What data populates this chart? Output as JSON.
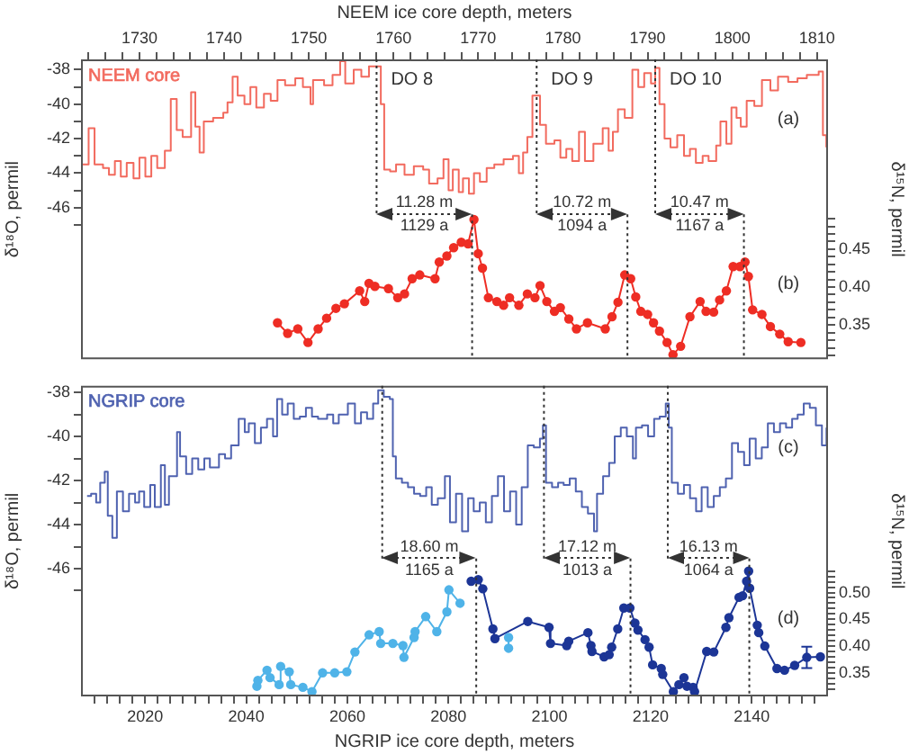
{
  "chart_data": [
    {
      "type": "step",
      "xlabel": "NEEM ice core depth, meters",
      "xlim": [
        1723.1,
        1811.3
      ],
      "xticks": [
        {
          "value": 1724,
          "label": null
        },
        {
          "value": 1726,
          "label": null
        },
        {
          "value": 1728,
          "label": null
        },
        1730,
        {
          "value": 1732,
          "label": null
        },
        {
          "value": 1734,
          "label": null
        },
        {
          "value": 1736,
          "label": null
        },
        {
          "value": 1738,
          "label": null
        },
        1740,
        {
          "value": 1742,
          "label": null
        },
        {
          "value": 1744,
          "label": null
        },
        {
          "value": 1746,
          "label": null
        },
        {
          "value": 1748,
          "label": null
        },
        1750,
        {
          "value": 1752,
          "label": null
        },
        {
          "value": 1754,
          "label": null
        },
        {
          "value": 1756,
          "label": null
        },
        {
          "value": 1758,
          "label": null
        },
        1760,
        {
          "value": 1762,
          "label": null
        },
        {
          "value": 1764,
          "label": null
        },
        {
          "value": 1766,
          "label": null
        },
        {
          "value": 1768,
          "label": null
        },
        1770,
        {
          "value": 1772,
          "label": null
        },
        {
          "value": 1774,
          "label": null
        },
        {
          "value": 1776,
          "label": null
        },
        {
          "value": 1778,
          "label": null
        },
        1780,
        {
          "value": 1782,
          "label": null
        },
        {
          "value": 1784,
          "label": null
        },
        {
          "value": 1786,
          "label": null
        },
        {
          "value": 1788,
          "label": null
        },
        1790,
        {
          "value": 1792,
          "label": null
        },
        {
          "value": 1794,
          "label": null
        },
        {
          "value": 1796,
          "label": null
        },
        {
          "value": 1798,
          "label": null
        },
        1800,
        {
          "value": 1802,
          "label": null
        },
        {
          "value": 1804,
          "label": null
        },
        {
          "value": 1806,
          "label": null
        },
        {
          "value": 1808,
          "label": null
        },
        1810
      ],
      "ylabel": "δ¹⁸O, permil",
      "ylim": [
        -54.8,
        -37.4
      ],
      "yticks": [
        -38,
        {
          "value": -39,
          "label": null
        },
        -40,
        {
          "value": -41,
          "label": null
        },
        -42,
        {
          "value": -43,
          "label": null
        },
        -44,
        {
          "value": -45,
          "label": null
        },
        -46,
        {
          "value": -47,
          "label": null
        }
      ],
      "y2label": "δ¹⁵N, permil",
      "y2lim": [
        0.305,
        0.7
      ],
      "y2ticks": [
        {
          "value": 0.31,
          "label": null
        },
        {
          "value": 0.32,
          "label": null
        },
        {
          "value": 0.33,
          "label": null
        },
        {
          "value": 0.34,
          "label": null
        },
        {
          "value": 0.35,
          "label": "0.35"
        },
        {
          "value": 0.36,
          "label": null
        },
        {
          "value": 0.37,
          "label": null
        },
        {
          "value": 0.38,
          "label": null
        },
        {
          "value": 0.39,
          "label": null
        },
        {
          "value": 0.4,
          "label": "0.40"
        },
        {
          "value": 0.41,
          "label": null
        },
        {
          "value": 0.42,
          "label": null
        },
        {
          "value": 0.43,
          "label": null
        },
        {
          "value": 0.44,
          "label": null
        },
        {
          "value": 0.45,
          "label": "0.45"
        },
        {
          "value": 0.46,
          "label": null
        },
        {
          "value": 0.47,
          "label": null
        },
        {
          "value": 0.48,
          "label": null
        },
        {
          "value": 0.49,
          "label": null
        }
      ],
      "legend": "top left",
      "grid": false,
      "marker": "circle",
      "series": [
        {
          "name": "NEEM core",
          "marker": "none",
          "color": "#f26a5e",
          "x": [
            1723.1,
            1724.0,
            1724.7,
            1725.7,
            1726.4,
            1727.1,
            1727.8,
            1728.5,
            1729.3,
            1730.0,
            1730.7,
            1731.4,
            1732.1,
            1733.0,
            1733.7,
            1734.4,
            1735.1,
            1736.1,
            1736.6,
            1737.1,
            1737.6,
            1738.7,
            1739.9,
            1740.4,
            1741.0,
            1741.6,
            1742.4,
            1743.1,
            1743.8,
            1744.7,
            1745.5,
            1746.3,
            1747.2,
            1748.4,
            1749.3,
            1750.2,
            1750.5,
            1751.8,
            1752.8,
            1753.7,
            1754.3,
            1755.3,
            1756.2,
            1757.1,
            1758.5,
            1758.9,
            1759.6,
            1760.3,
            1761.3,
            1762.4,
            1763.5,
            1764.2,
            1765.2,
            1765.9,
            1766.5,
            1767.0,
            1767.7,
            1768.2,
            1768.9,
            1769.5,
            1770.2,
            1771.0,
            1771.9,
            1773.0,
            1774.1,
            1774.8,
            1775.3,
            1775.8,
            1776.4,
            1777.3,
            1778.0,
            1779.0,
            1779.7,
            1780.4,
            1781.1,
            1781.9,
            1782.6,
            1783.6,
            1784.7,
            1785.4,
            1785.9,
            1786.5,
            1787.3,
            1788.2,
            1788.9,
            1789.6,
            1790.4,
            1790.9,
            1791.4,
            1792.0,
            1792.7,
            1793.5,
            1794.3,
            1795.0,
            1795.7,
            1796.5,
            1797.2,
            1798.1,
            1798.6,
            1799.3,
            1799.9,
            1800.5,
            1801.0,
            1801.7,
            1802.6,
            1803.5,
            1804.5,
            1805.4,
            1806.6,
            1807.7,
            1808.8,
            1810.2,
            1810.7,
            1811.1
          ],
          "values": [
            -43.5,
            -41.4,
            -43.5,
            -43.7,
            -44.1,
            -43.3,
            -44.2,
            -43.4,
            -44.3,
            -43.1,
            -44.2,
            -43.0,
            -43.7,
            -42.7,
            -39.7,
            -41.5,
            -41.9,
            -39.3,
            -41.3,
            -42.8,
            -41.0,
            -40.8,
            -40.5,
            -39.9,
            -38.4,
            -39.5,
            -40.0,
            -39.0,
            -40.2,
            -39.4,
            -39.8,
            -38.6,
            -38.9,
            -38.5,
            -39.0,
            -40.0,
            -38.6,
            -38.9,
            -38.3,
            -37.5,
            -38.8,
            -38.0,
            -38.4,
            -37.8,
            -40.0,
            -43.8,
            -43.9,
            -43.5,
            -44.1,
            -43.6,
            -43.8,
            -44.6,
            -44.3,
            -43.2,
            -45.0,
            -43.8,
            -45.1,
            -44.3,
            -45.2,
            -44.0,
            -44.5,
            -43.7,
            -43.5,
            -43.2,
            -43.0,
            -44.0,
            -42.8,
            -41.9,
            -39.5,
            -41.2,
            -42.3,
            -42.1,
            -43.1,
            -42.6,
            -43.3,
            -41.6,
            -43.3,
            -42.3,
            -41.4,
            -42.7,
            -41.6,
            -40.3,
            -40.8,
            -38.0,
            -39.0,
            -38.2,
            -38.8,
            -37.9,
            -40.0,
            -42.0,
            -42.5,
            -41.8,
            -43.0,
            -42.6,
            -43.4,
            -43.0,
            -43.3,
            -42.4,
            -41.0,
            -42.3,
            -40.2,
            -40.8,
            -41.3,
            -39.8,
            -40.1,
            -38.6,
            -39.2,
            -38.4,
            -38.7,
            -38.5,
            -38.3,
            -38.1,
            -41.8,
            -42.5
          ]
        },
        {
          "type": "line",
          "axis": "y2",
          "color": "#ee2d24",
          "x": [
            1746.3,
            1747.5,
            1748.7,
            1749.9,
            1751.1,
            1752.1,
            1753.2,
            1754.2,
            1756.0,
            1756.6,
            1757.1,
            1757.8,
            1759.4,
            1760.5,
            1761.3,
            1762.2,
            1763.1,
            1764.9,
            1765.4,
            1766.3,
            1767.1,
            1768.0,
            1768.8,
            1769.5,
            1770.0,
            1770.5,
            1771.2,
            1772.2,
            1773.0,
            1773.7,
            1774.8,
            1775.8,
            1776.7,
            1777.3,
            1778.1,
            1779.0,
            1779.7,
            1780.7,
            1781.6,
            1782.9,
            1785.0,
            1785.8,
            1786.5,
            1787.3,
            1788.0,
            1788.6,
            1789.2,
            1790.0,
            1790.7,
            1791.4,
            1792.3,
            1793.0,
            1793.9,
            1795.0,
            1796.2,
            1796.9,
            1797.8,
            1798.5,
            1799.3,
            1800.1,
            1800.9,
            1801.5,
            1801.9,
            1802.4,
            1803.5,
            1804.5,
            1805.6,
            1806.6,
            1808.1
          ],
          "values": [
            0.353,
            0.339,
            0.345,
            0.327,
            0.345,
            0.359,
            0.372,
            0.378,
            0.395,
            0.381,
            0.405,
            0.401,
            0.398,
            0.386,
            0.391,
            0.411,
            0.416,
            0.411,
            0.433,
            0.441,
            0.452,
            0.459,
            0.457,
            0.489,
            0.444,
            0.425,
            0.386,
            0.381,
            0.376,
            0.386,
            0.376,
            0.391,
            0.386,
            0.402,
            0.381,
            0.368,
            0.373,
            0.358,
            0.345,
            0.353,
            0.345,
            0.361,
            0.38,
            0.416,
            0.411,
            0.387,
            0.368,
            0.364,
            0.353,
            0.342,
            0.327,
            0.311,
            0.322,
            0.361,
            0.381,
            0.368,
            0.367,
            0.383,
            0.395,
            0.427,
            0.427,
            0.433,
            0.414,
            0.37,
            0.364,
            0.348,
            0.338,
            0.328,
            0.327
          ]
        }
      ],
      "ref_lines": [
        {
          "axis": "x",
          "value": 1758.0,
          "label": "DO 8",
          "line_style": "dotted"
        },
        {
          "axis": "x",
          "value": 1769.28,
          "line_style": "dotted"
        },
        {
          "axis": "x",
          "value": 1776.9,
          "label": "DO 9",
          "line_style": "dotted"
        },
        {
          "axis": "x",
          "value": 1787.62,
          "line_style": "dotted"
        },
        {
          "axis": "x",
          "value": 1790.9,
          "label": "DO 10",
          "line_style": "dotted"
        },
        {
          "axis": "x",
          "value": 1801.37,
          "line_style": "dotted"
        }
      ],
      "annotations": [
        "11.28 m",
        "1129 a",
        "10.72 m",
        "1094 a",
        "10.47 m",
        "1167 a",
        "(a)",
        "(b)"
      ]
    },
    {
      "type": "step",
      "xlabel": "NGRIP ice core depth, meters",
      "xlim": [
        2007.3,
        2155.1
      ],
      "xticks": [
        {
          "value": 2010,
          "label": null
        },
        {
          "value": 2012.5,
          "label": null
        },
        {
          "value": 2015,
          "label": null
        },
        {
          "value": 2017.5,
          "label": null
        },
        2020,
        {
          "value": 2022.5,
          "label": null
        },
        {
          "value": 2025,
          "label": null
        },
        {
          "value": 2027.5,
          "label": null
        },
        {
          "value": 2030,
          "label": null
        },
        {
          "value": 2032.5,
          "label": null
        },
        {
          "value": 2035,
          "label": null
        },
        {
          "value": 2037.5,
          "label": null
        },
        2040,
        {
          "value": 2042.5,
          "label": null
        },
        {
          "value": 2045,
          "label": null
        },
        {
          "value": 2047.5,
          "label": null
        },
        {
          "value": 2050,
          "label": null
        },
        {
          "value": 2052.5,
          "label": null
        },
        {
          "value": 2055,
          "label": null
        },
        {
          "value": 2057.5,
          "label": null
        },
        2060,
        {
          "value": 2062.5,
          "label": null
        },
        {
          "value": 2065,
          "label": null
        },
        {
          "value": 2067.5,
          "label": null
        },
        {
          "value": 2070,
          "label": null
        },
        {
          "value": 2072.5,
          "label": null
        },
        {
          "value": 2075,
          "label": null
        },
        {
          "value": 2077.5,
          "label": null
        },
        2080,
        {
          "value": 2082.5,
          "label": null
        },
        {
          "value": 2085,
          "label": null
        },
        {
          "value": 2087.5,
          "label": null
        },
        {
          "value": 2090,
          "label": null
        },
        {
          "value": 2092.5,
          "label": null
        },
        {
          "value": 2095,
          "label": null
        },
        {
          "value": 2097.5,
          "label": null
        },
        2100,
        {
          "value": 2102.5,
          "label": null
        },
        {
          "value": 2105,
          "label": null
        },
        {
          "value": 2107.5,
          "label": null
        },
        {
          "value": 2110,
          "label": null
        },
        {
          "value": 2112.5,
          "label": null
        },
        {
          "value": 2115,
          "label": null
        },
        {
          "value": 2117.5,
          "label": null
        },
        2120,
        {
          "value": 2122.5,
          "label": null
        },
        {
          "value": 2125,
          "label": null
        },
        {
          "value": 2127.5,
          "label": null
        },
        {
          "value": 2130,
          "label": null
        },
        {
          "value": 2132.5,
          "label": null
        },
        {
          "value": 2135,
          "label": null
        },
        {
          "value": 2137.5,
          "label": null
        },
        2140,
        {
          "value": 2142.5,
          "label": null
        },
        {
          "value": 2145,
          "label": null
        },
        {
          "value": 2147.5,
          "label": null
        },
        {
          "value": 2150,
          "label": null
        },
        {
          "value": 2152.5,
          "label": null
        }
      ],
      "ylabel": "δ¹⁸O, permil",
      "ylim": [
        -51.8,
        -37.7
      ],
      "yticks": [
        -38,
        {
          "value": -39,
          "label": null
        },
        -40,
        {
          "value": -41,
          "label": null
        },
        -42,
        {
          "value": -43,
          "label": null
        },
        -44,
        {
          "value": -45,
          "label": null
        },
        -46,
        {
          "value": -47,
          "label": null
        }
      ],
      "y2label": "δ¹⁵N, permil",
      "y2lim": [
        0.306,
        0.886
      ],
      "y2ticks": [
        {
          "value": 0.32,
          "label": null
        },
        {
          "value": 0.33,
          "label": null
        },
        {
          "value": 0.34,
          "label": null
        },
        {
          "value": 0.35,
          "label": "0.35"
        },
        {
          "value": 0.36,
          "label": null
        },
        {
          "value": 0.37,
          "label": null
        },
        {
          "value": 0.38,
          "label": null
        },
        {
          "value": 0.39,
          "label": null
        },
        {
          "value": 0.4,
          "label": "0.40"
        },
        {
          "value": 0.41,
          "label": null
        },
        {
          "value": 0.42,
          "label": null
        },
        {
          "value": 0.43,
          "label": null
        },
        {
          "value": 0.44,
          "label": null
        },
        {
          "value": 0.45,
          "label": "0.45"
        },
        {
          "value": 0.46,
          "label": null
        },
        {
          "value": 0.47,
          "label": null
        },
        {
          "value": 0.48,
          "label": null
        },
        {
          "value": 0.49,
          "label": null
        },
        {
          "value": 0.5,
          "label": "0.50"
        },
        {
          "value": 0.51,
          "label": null
        },
        {
          "value": 0.52,
          "label": null
        },
        {
          "value": 0.53,
          "label": null
        },
        {
          "value": 0.54,
          "label": null
        }
      ],
      "legend": "top left",
      "grid": false,
      "marker": "circle",
      "series": [
        {
          "name": "NGRIP core",
          "marker": "none",
          "color": "#4f62b0",
          "x": [
            2008.5,
            2009.3,
            2010.3,
            2011.1,
            2012.0,
            2012.6,
            2013.5,
            2014.4,
            2015.6,
            2016.8,
            2018.0,
            2018.8,
            2019.8,
            2021.0,
            2021.9,
            2023.1,
            2023.9,
            2024.7,
            2026.3,
            2026.9,
            2028.1,
            2029.3,
            2030.5,
            2031.7,
            2032.8,
            2034.6,
            2035.8,
            2037.0,
            2038.5,
            2039.7,
            2040.5,
            2041.7,
            2042.9,
            2044.1,
            2045.3,
            2046.1,
            2047.1,
            2048.2,
            2049.4,
            2050.6,
            2051.8,
            2053.0,
            2054.2,
            2056.0,
            2057.2,
            2058.3,
            2060.1,
            2061.5,
            2062.7,
            2063.9,
            2065.1,
            2066.1,
            2067.2,
            2068.4,
            2069.0,
            2069.6,
            2070.8,
            2072.0,
            2073.2,
            2074.4,
            2075.6,
            2076.7,
            2077.9,
            2079.3,
            2080.3,
            2081.5,
            2082.7,
            2083.9,
            2085.0,
            2086.2,
            2087.4,
            2088.6,
            2089.8,
            2091.0,
            2092.2,
            2093.4,
            2094.5,
            2095.7,
            2096.9,
            2098.1,
            2098.7,
            2099.3,
            2100.5,
            2101.7,
            2102.8,
            2104.0,
            2105.2,
            2106.4,
            2107.6,
            2108.8,
            2109.4,
            2110.6,
            2111.8,
            2112.9,
            2114.1,
            2115.3,
            2116.5,
            2117.1,
            2118.3,
            2119.5,
            2120.7,
            2121.8,
            2123.0,
            2123.6,
            2124.2,
            2125.4,
            2126.6,
            2127.8,
            2129.0,
            2130.1,
            2131.3,
            2132.5,
            2133.7,
            2134.9,
            2136.1,
            2137.3,
            2138.5,
            2139.6,
            2140.8,
            2142.0,
            2143.2,
            2144.4,
            2145.6,
            2146.8,
            2148.0,
            2149.1,
            2150.3,
            2151.5,
            2152.7,
            2153.9,
            2154.8
          ],
          "values": [
            -42.7,
            -42.6,
            -43.0,
            -42.1,
            -41.6,
            -43.6,
            -44.6,
            -42.5,
            -43.4,
            -42.6,
            -43.0,
            -42.5,
            -43.2,
            -42.2,
            -43.2,
            -41.3,
            -43.1,
            -41.8,
            -39.8,
            -40.9,
            -41.7,
            -41.0,
            -41.5,
            -41.0,
            -41.4,
            -40.8,
            -41.0,
            -40.4,
            -39.2,
            -39.8,
            -39.4,
            -40.3,
            -39.6,
            -39.2,
            -40.0,
            -38.3,
            -39.0,
            -38.5,
            -39.2,
            -39.1,
            -38.7,
            -39.1,
            -39.2,
            -39.0,
            -39.4,
            -39.0,
            -38.5,
            -39.4,
            -38.9,
            -39.2,
            -38.5,
            -37.9,
            -38.2,
            -38.3,
            -40.9,
            -41.9,
            -42.1,
            -42.3,
            -42.6,
            -42.7,
            -42.3,
            -43.1,
            -42.8,
            -41.8,
            -43.9,
            -42.6,
            -44.3,
            -42.8,
            -43.4,
            -43.0,
            -43.9,
            -42.7,
            -41.8,
            -43.4,
            -42.5,
            -44.0,
            -42.3,
            -40.4,
            -40.5,
            -40.1,
            -39.5,
            -42.1,
            -42.3,
            -42.1,
            -42.2,
            -41.9,
            -42.5,
            -43.2,
            -43.5,
            -44.3,
            -42.6,
            -41.8,
            -41.2,
            -40.0,
            -39.6,
            -40.0,
            -41.0,
            -39.6,
            -39.5,
            -40.0,
            -39.2,
            -39.1,
            -38.5,
            -39.6,
            -42.1,
            -42.6,
            -42.2,
            -42.8,
            -43.4,
            -42.3,
            -43.2,
            -42.7,
            -42.3,
            -41.9,
            -40.3,
            -40.7,
            -41.3,
            -40.1,
            -41.0,
            -40.5,
            -39.4,
            -39.8,
            -39.4,
            -39.6,
            -39.2,
            -39.0,
            -38.5,
            -38.7,
            -39.5,
            -40.4,
            -39.6
          ]
        },
        {
          "type": "line",
          "axis": "y2",
          "color": "#4fb3e8",
          "x": [
            2042.1,
            2042.3,
            2044.1,
            2044.7,
            2046.5,
            2046.8,
            2048.5,
            2048.8,
            2051.2,
            2053.0,
            2055.1,
            2057.5,
            2059.9,
            2061.5,
            2064.3,
            2066.3,
            2066.6,
            2069.0,
            2071.0,
            2071.2,
            2073.2,
            2073.4,
            2075.5,
            2077.7,
            2079.7,
            2080.1,
            2082.3,
            2087.0,
            2091.9,
            2091.9
          ],
          "values": [
            0.325,
            0.336,
            0.355,
            0.341,
            0.328,
            0.362,
            0.352,
            0.328,
            0.323,
            0.315,
            0.35,
            0.35,
            0.352,
            0.389,
            0.421,
            0.427,
            0.405,
            0.405,
            0.401,
            0.379,
            0.416,
            0.427,
            0.455,
            0.427,
            0.464,
            0.505,
            0.48,
            null,
            0.416,
            0.396
          ]
        },
        {
          "type": "line",
          "axis": "y2",
          "color": "#1c3596",
          "x": [
            2084.5,
            2085.9,
            2086.8,
            2088.8,
            2089.2,
            2095.7,
            2099.9,
            2100.2,
            2103.4,
            2103.8,
            2107.6,
            2108.2,
            2108.4,
            2110.8,
            2111.8,
            2112.3,
            2113.5,
            2114.7,
            2115.9,
            2116.9,
            2117.5,
            2118.9,
            2119.7,
            2120.4,
            2122.1,
            2122.4,
            2124.5,
            2125.6,
            2126.6,
            2127.2,
            2128.4,
            2128.7,
            2131.1,
            2132.5,
            2134.9,
            2135.5,
            2137.5,
            2138.2,
            2139.0,
            2139.4,
            2139.6,
            2141.1,
            2141.4,
            2142.6,
            2145.0,
            2146.5,
            2148.5,
            2150.9,
            2153.6
          ],
          "values": [
            0.521,
            0.524,
            0.507,
            0.432,
            0.414,
            0.446,
            0.435,
            0.405,
            0.401,
            0.409,
            0.425,
            0.401,
            0.39,
            0.38,
            0.384,
            0.398,
            0.432,
            0.471,
            0.471,
            0.443,
            0.43,
            0.412,
            0.398,
            0.365,
            0.358,
            0.347,
            0.315,
            0.328,
            0.341,
            0.325,
            0.323,
            0.315,
            0.39,
            0.389,
            0.435,
            0.453,
            0.491,
            0.494,
            0.521,
            0.54,
            0.508,
            0.439,
            0.425,
            0.4,
            0.358,
            0.355,
            0.364,
            0.379,
            0.38
          ],
          "errors": [
            null,
            null,
            null,
            null,
            null,
            null,
            null,
            null,
            null,
            null,
            null,
            null,
            null,
            null,
            null,
            null,
            null,
            null,
            null,
            null,
            null,
            null,
            null,
            null,
            null,
            null,
            null,
            null,
            null,
            null,
            null,
            null,
            null,
            null,
            null,
            null,
            null,
            null,
            null,
            null,
            null,
            null,
            null,
            null,
            null,
            null,
            null,
            0.02,
            null
          ]
        }
      ],
      "ref_lines": [
        {
          "axis": "x",
          "value": 2066.9,
          "line_style": "dotted"
        },
        {
          "axis": "x",
          "value": 2085.5,
          "line_style": "dotted"
        },
        {
          "axis": "x",
          "value": 2098.9,
          "line_style": "dotted"
        },
        {
          "axis": "x",
          "value": 2116.02,
          "line_style": "dotted"
        },
        {
          "axis": "x",
          "value": 2123.4,
          "line_style": "dotted"
        },
        {
          "axis": "x",
          "value": 2139.53,
          "line_style": "dotted"
        }
      ],
      "annotations": [
        "18.60 m",
        "1165 a",
        "17.12 m",
        "1013 a",
        "16.13 m",
        "1064 a",
        "(c)",
        "(d)"
      ]
    }
  ]
}
